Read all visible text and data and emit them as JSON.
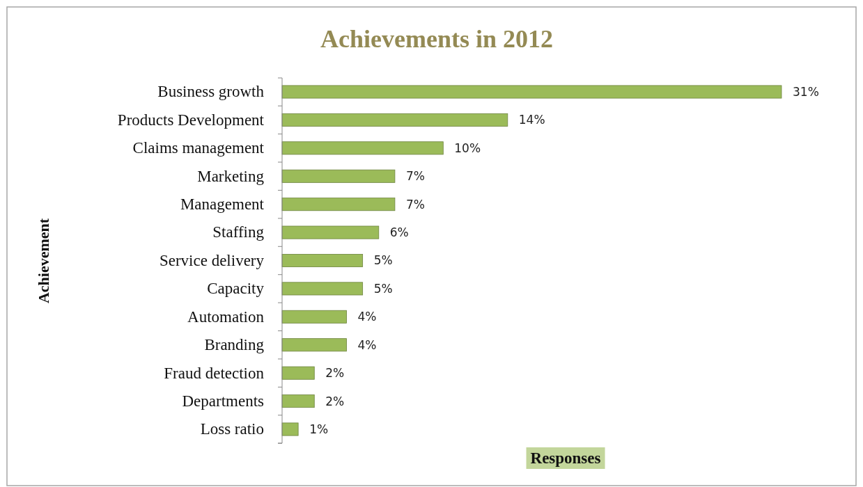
{
  "chart_data": {
    "type": "bar",
    "orientation": "horizontal",
    "title": "Achievements in 2012",
    "xlabel": "Responses",
    "ylabel": "Achievement",
    "categories": [
      "Business growth",
      "Products Development",
      "Claims management",
      "Marketing",
      "Management",
      "Staffing",
      "Service delivery",
      "Capacity",
      "Automation",
      "Branding",
      "Fraud detection",
      "Departments",
      "Loss ratio"
    ],
    "values": [
      31,
      14,
      10,
      7,
      7,
      6,
      5,
      5,
      4,
      4,
      2,
      2,
      1
    ],
    "value_labels": [
      "31%",
      "14%",
      "10%",
      "7%",
      "7%",
      "6%",
      "5%",
      "5%",
      "4%",
      "4%",
      "2%",
      "2%",
      "1%"
    ],
    "color": "#9bbb59",
    "tick_labels": "y"
  }
}
